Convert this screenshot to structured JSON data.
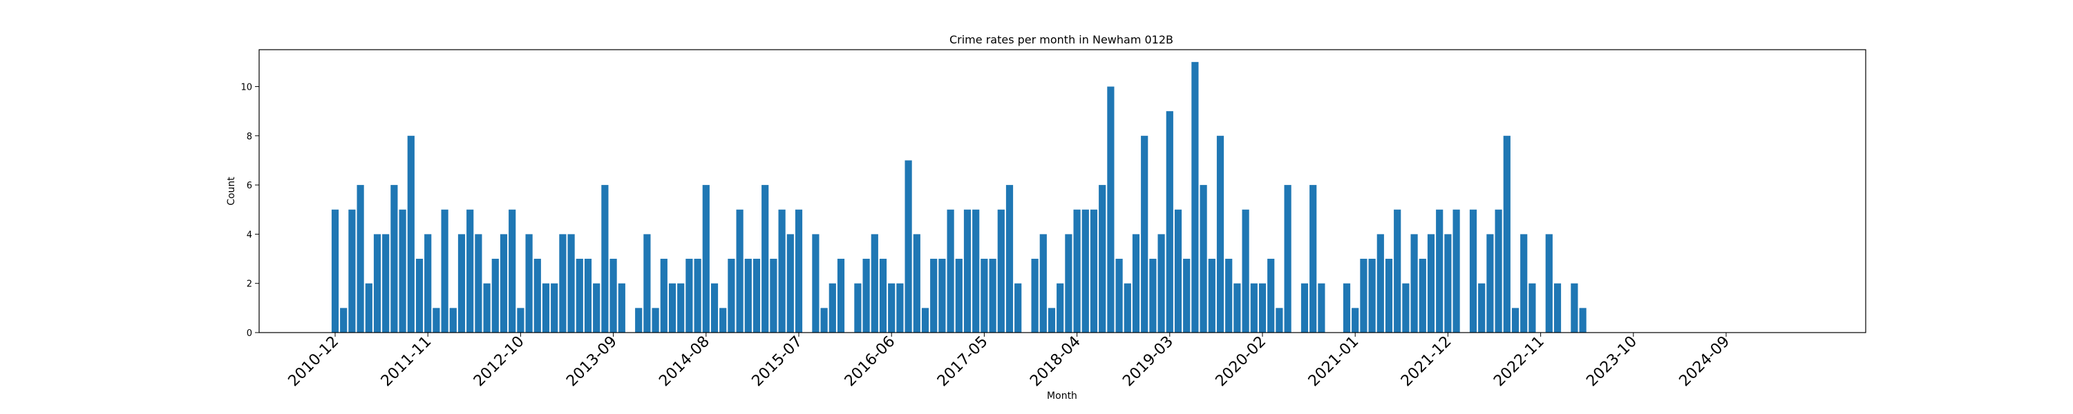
{
  "chart_data": {
    "type": "bar",
    "title": "Crime rates per month in Newham 012B",
    "xlabel": "Month",
    "ylabel": "Count",
    "ylim": [
      0,
      11.5
    ],
    "yticks": [
      0,
      2,
      4,
      6,
      8,
      10
    ],
    "xticks": [
      "2010-12",
      "2011-11",
      "2012-10",
      "2013-09",
      "2014-08",
      "2015-07",
      "2016-06",
      "2017-05",
      "2018-04",
      "2019-03",
      "2020-02",
      "2021-01",
      "2021-12",
      "2022-11",
      "2023-10",
      "2024-09"
    ],
    "start_month": "2010-12",
    "bar_color": "#1f77b4",
    "grid": false,
    "values": [
      5,
      1,
      5,
      6,
      2,
      4,
      4,
      6,
      5,
      8,
      3,
      4,
      1,
      5,
      1,
      4,
      5,
      4,
      2,
      3,
      4,
      5,
      1,
      4,
      3,
      2,
      2,
      4,
      4,
      3,
      3,
      2,
      6,
      3,
      2,
      0,
      1,
      4,
      1,
      3,
      2,
      2,
      3,
      3,
      6,
      2,
      1,
      3,
      5,
      3,
      3,
      6,
      3,
      5,
      4,
      5,
      0,
      4,
      1,
      2,
      3,
      0,
      2,
      3,
      4,
      3,
      2,
      2,
      7,
      4,
      1,
      3,
      3,
      5,
      3,
      5,
      5,
      3,
      3,
      5,
      6,
      2,
      0,
      3,
      4,
      1,
      2,
      4,
      5,
      5,
      5,
      6,
      10,
      3,
      2,
      4,
      8,
      3,
      4,
      9,
      5,
      3,
      11,
      6,
      3,
      8,
      3,
      2,
      5,
      2,
      2,
      3,
      1,
      6,
      0,
      2,
      6,
      2,
      0,
      0,
      2,
      1,
      3,
      3,
      4,
      3,
      5,
      2,
      4,
      3,
      4,
      5,
      4,
      5,
      0,
      5,
      2,
      4,
      5,
      8,
      1,
      4,
      2,
      0,
      4,
      2,
      0,
      2,
      1
    ]
  }
}
